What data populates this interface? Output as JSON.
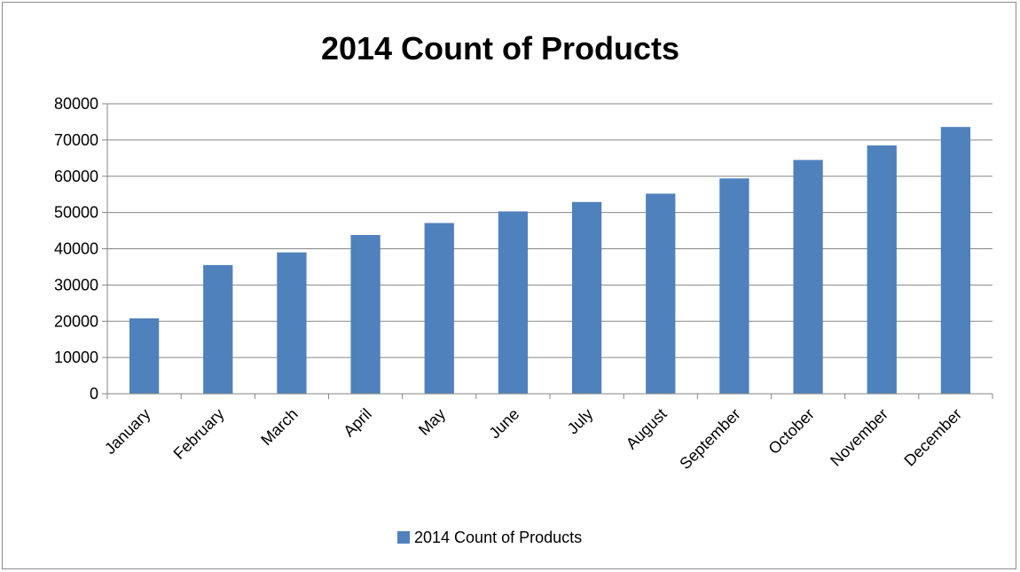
{
  "chart_data": {
    "type": "bar",
    "title": "2014 Count of Products",
    "categories": [
      "January",
      "February",
      "March",
      "April",
      "May",
      "June",
      "July",
      "August",
      "September",
      "October",
      "November",
      "December"
    ],
    "series": [
      {
        "name": "2014 Count of Products",
        "values": [
          20800,
          35500,
          39000,
          43800,
          47100,
          50300,
          52900,
          55200,
          59400,
          64500,
          68500,
          73600
        ]
      }
    ],
    "ylim": [
      0,
      80000
    ],
    "yticks": [
      "0",
      "10000",
      "20000",
      "30000",
      "40000",
      "50000",
      "60000",
      "70000",
      "80000"
    ],
    "grid": true,
    "legend_position": "bottom",
    "colors": {
      "bar": "#4F81BD",
      "grid": "#868686",
      "axis": "#868686"
    }
  }
}
